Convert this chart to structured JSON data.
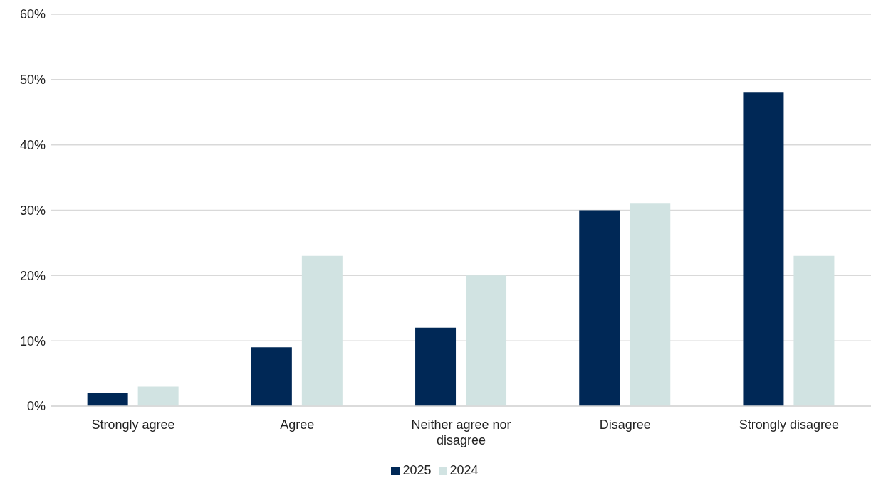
{
  "chart_data": {
    "type": "bar",
    "categories": [
      "Strongly agree",
      "Agree",
      "Neither agree nor disagree",
      "Disagree",
      "Strongly disagree"
    ],
    "series": [
      {
        "name": "2025",
        "color": "#002856",
        "values": [
          2,
          9,
          12,
          30,
          48
        ]
      },
      {
        "name": "2024",
        "color": "#d1e3e2",
        "values": [
          3,
          23,
          20,
          31,
          23
        ]
      }
    ],
    "ylim": [
      0,
      60
    ],
    "yticks": [
      {
        "value": 0,
        "label": "0%"
      },
      {
        "value": 10,
        "label": "10%"
      },
      {
        "value": 20,
        "label": "20%"
      },
      {
        "value": 30,
        "label": "30%"
      },
      {
        "value": 40,
        "label": "40%"
      },
      {
        "value": 50,
        "label": "50%"
      },
      {
        "value": 60,
        "label": "60%"
      }
    ],
    "grid": "y",
    "legend": "bottom"
  }
}
